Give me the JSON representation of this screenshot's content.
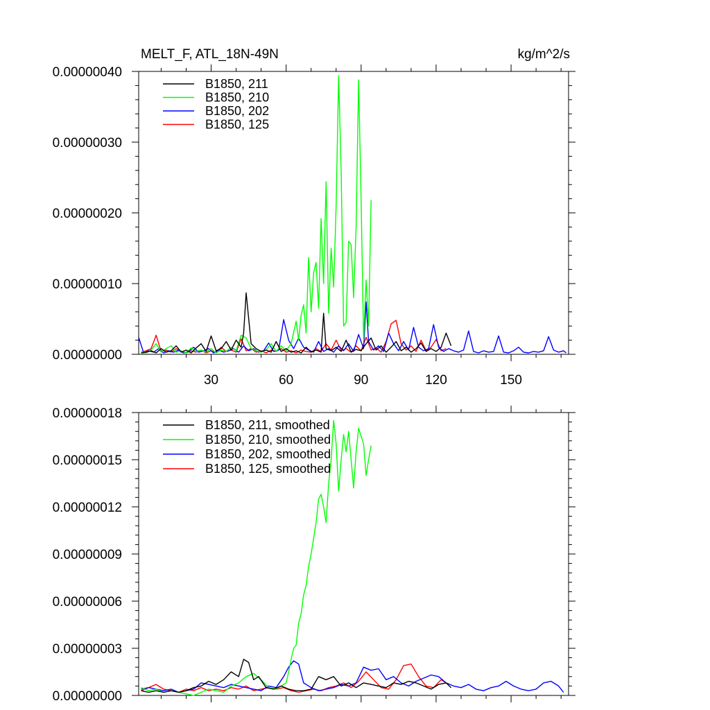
{
  "chart_data": [
    {
      "type": "line",
      "title": "MELT_F, ATL_18N-49N",
      "units": "kg/m^2/s",
      "xlim": [
        1,
        173
      ],
      "ylim": [
        0,
        4e-07
      ],
      "xticks": [
        30,
        60,
        90,
        120,
        150
      ],
      "xtick_labels": [
        "30",
        "60",
        "90",
        "120",
        "150"
      ],
      "yticks": [
        0,
        1e-07,
        2e-07,
        3e-07,
        4e-07
      ],
      "ytick_labels": [
        "0.00000000",
        "0.00000010",
        "0.00000020",
        "0.00000030",
        "0.00000040"
      ],
      "legend_position": "top-left",
      "series": [
        {
          "name": "B1850, 211",
          "color": "#000000",
          "x": [
            2,
            4,
            6,
            8,
            10,
            12,
            14,
            16,
            18,
            20,
            22,
            24,
            26,
            28,
            30,
            32,
            34,
            36,
            38,
            40,
            42,
            43,
            44,
            46,
            48,
            50,
            52,
            54,
            56,
            58,
            60,
            62,
            64,
            66,
            68,
            70,
            72,
            74,
            75,
            76,
            78,
            80,
            82,
            84,
            86,
            88,
            90,
            92,
            94,
            96,
            98,
            100,
            102,
            104,
            106,
            108,
            110,
            112,
            114,
            116,
            118,
            120,
            122,
            124,
            126
          ],
          "y": [
            2e-09,
            3e-09,
            5e-09,
            2e-09,
            8e-09,
            3e-09,
            5e-09,
            1.2e-08,
            3e-09,
            6e-09,
            2e-09,
            9e-09,
            1.5e-08,
            4e-09,
            2.6e-08,
            5e-09,
            8e-09,
            1.8e-08,
            6e-09,
            2e-08,
            1e-08,
            3e-08,
            8.7e-08,
            1.5e-08,
            8e-09,
            4e-09,
            6e-09,
            3e-09,
            1.8e-08,
            4e-09,
            8e-09,
            3e-09,
            5e-09,
            2e-09,
            1e-08,
            3e-09,
            6e-09,
            3e-09,
            5.8e-08,
            8e-09,
            5e-09,
            1e-08,
            4e-09,
            2e-08,
            3e-09,
            7e-09,
            5e-09,
            1.5e-08,
            2.3e-08,
            6e-09,
            1.2e-08,
            3e-09,
            1e-08,
            1.8e-08,
            5e-09,
            1e-08,
            3e-09,
            8e-09,
            1.6e-08,
            4e-09,
            8e-09,
            4e-09,
            1e-08,
            3e-08,
            1.2e-08
          ]
        },
        {
          "name": "B1850, 210",
          "color": "#00ff00",
          "x": [
            2,
            4,
            6,
            8,
            10,
            12,
            14,
            16,
            18,
            20,
            22,
            24,
            26,
            28,
            30,
            32,
            34,
            36,
            38,
            40,
            42,
            44,
            46,
            48,
            50,
            52,
            54,
            56,
            58,
            60,
            62,
            64,
            65,
            66,
            67,
            68,
            69,
            70,
            71,
            72,
            73,
            74,
            75,
            76,
            77,
            78,
            79,
            80,
            81,
            82,
            83,
            84,
            85,
            86,
            87,
            88,
            89,
            90,
            91,
            92,
            93,
            94
          ],
          "y": [
            4e-09,
            2e-09,
            6e-09,
            1.5e-08,
            3e-09,
            8e-09,
            1.2e-08,
            3e-09,
            5e-09,
            2e-09,
            9e-09,
            4e-09,
            6e-09,
            3e-09,
            8e-09,
            2e-09,
            6e-09,
            4e-09,
            1e-08,
            5e-09,
            2.7e-08,
            2.3e-08,
            8e-09,
            5e-09,
            3e-09,
            6e-09,
            1.5e-08,
            4e-09,
            1.2e-08,
            5e-09,
            1.5e-08,
            4.7e-08,
            2e-08,
            5.5e-08,
            7e-08,
            3e-08,
            1.37e-07,
            6e-08,
            1.15e-07,
            1.3e-07,
            6.5e-08,
            1.92e-07,
            1e-07,
            2.44e-07,
            5.8e-08,
            1.5e-07,
            9.5e-08,
            2.1e-07,
            3.94e-07,
            2.6e-07,
            4e-08,
            4.5e-08,
            1.6e-07,
            1.55e-07,
            8e-08,
            1.8e-07,
            3.88e-07,
            2.2e-07,
            2e-08,
            1.05e-07,
            4e-08,
            2.18e-07
          ]
        },
        {
          "name": "B1850, 202",
          "color": "#0000ff",
          "x": [
            1,
            3,
            5,
            7,
            9,
            11,
            13,
            15,
            17,
            19,
            21,
            23,
            25,
            27,
            29,
            31,
            33,
            35,
            37,
            39,
            41,
            43,
            45,
            47,
            49,
            51,
            53,
            55,
            57,
            59,
            61,
            63,
            65,
            67,
            69,
            71,
            73,
            75,
            77,
            79,
            81,
            83,
            85,
            87,
            89,
            91,
            92,
            93,
            95,
            97,
            99,
            101,
            103,
            105,
            107,
            109,
            111,
            113,
            115,
            117,
            119,
            121,
            123,
            125,
            127,
            129,
            131,
            133,
            135,
            137,
            139,
            141,
            143,
            145,
            147,
            149,
            151,
            153,
            155,
            157,
            159,
            161,
            163,
            165,
            167,
            169,
            171,
            172
          ],
          "y": [
            2.4e-08,
            2e-09,
            5e-09,
            3e-09,
            8e-09,
            2e-09,
            5e-09,
            3e-09,
            6e-09,
            2e-09,
            4e-09,
            1e-08,
            3e-09,
            5e-09,
            8e-09,
            2e-09,
            6e-09,
            3e-09,
            5e-09,
            8e-09,
            3e-09,
            1.2e-08,
            5e-09,
            8e-09,
            3e-09,
            5e-09,
            1.6e-08,
            4e-09,
            6e-09,
            4.9e-08,
            2e-08,
            8e-09,
            2.3e-08,
            1e-08,
            6e-09,
            3e-09,
            1.8e-08,
            4e-09,
            8e-09,
            3e-09,
            1.2e-08,
            5e-09,
            1.5e-08,
            4e-09,
            2.8e-08,
            8e-09,
            7.4e-08,
            1.8e-08,
            6e-09,
            1.2e-08,
            4e-09,
            3e-08,
            1.5e-08,
            5e-09,
            1.8e-08,
            6e-09,
            3.8e-08,
            1e-08,
            5e-09,
            8e-09,
            4.2e-08,
            1e-08,
            4e-09,
            8e-09,
            5e-09,
            3e-09,
            6e-09,
            3.3e-08,
            4e-09,
            2e-09,
            5e-09,
            3e-09,
            4e-09,
            2.6e-08,
            3e-09,
            2e-09,
            5e-09,
            1e-08,
            3e-09,
            2e-09,
            4e-09,
            3e-09,
            5e-09,
            2.5e-08,
            6e-09,
            3e-09,
            5e-09,
            2e-09
          ]
        },
        {
          "name": "B1850, 125",
          "color": "#ff0000",
          "x": [
            2,
            4,
            6,
            8,
            10,
            12,
            14,
            16,
            18,
            20,
            22,
            24,
            26,
            28,
            30,
            32,
            34,
            36,
            38,
            40,
            42,
            44,
            46,
            48,
            50,
            52,
            54,
            56,
            58,
            60,
            62,
            64,
            66,
            68,
            70,
            72,
            74,
            76,
            78,
            80,
            82,
            84,
            86,
            88,
            90,
            92,
            94,
            96,
            98,
            100,
            102,
            104,
            106,
            108,
            110,
            112,
            114,
            116,
            118,
            120,
            122,
            124
          ],
          "y": [
            3e-09,
            5e-09,
            8e-09,
            2.7e-08,
            4e-09,
            6e-09,
            3e-09,
            8e-09,
            4e-09,
            2e-09,
            5e-09,
            3e-09,
            6e-09,
            2e-09,
            5e-09,
            3e-09,
            1e-08,
            4e-09,
            6e-09,
            3e-09,
            2.2e-08,
            5e-09,
            8e-09,
            3e-09,
            5e-09,
            2e-09,
            6e-09,
            4e-09,
            8e-09,
            3e-09,
            5e-09,
            2e-09,
            6e-09,
            4e-09,
            3e-09,
            8e-09,
            4e-09,
            1.5e-08,
            6e-09,
            2e-08,
            5e-09,
            8e-09,
            3e-09,
            1.2e-08,
            5e-09,
            2.4e-08,
            6e-09,
            9e-09,
            3e-09,
            1.8e-08,
            4.3e-08,
            4.8e-08,
            1.5e-08,
            6e-09,
            1.2e-08,
            4e-09,
            2e-08,
            5e-09,
            1e-08,
            2.1e-08,
            5e-09,
            8e-09
          ]
        }
      ]
    },
    {
      "type": "line",
      "xlim": [
        1,
        173
      ],
      "ylim": [
        0,
        1.8e-07
      ],
      "xticks": [
        30,
        60,
        90,
        120,
        150
      ],
      "yticks": [
        0,
        3e-08,
        6e-08,
        9e-08,
        1.2e-07,
        1.5e-07,
        1.8e-07
      ],
      "ytick_labels": [
        "0.00000000",
        "0.00000003",
        "0.00000006",
        "0.00000009",
        "0.00000012",
        "0.00000015",
        "0.00000018"
      ],
      "legend_position": "top-left",
      "series": [
        {
          "name": "B1850, 211, smoothed",
          "color": "#000000",
          "x": [
            2,
            5,
            8,
            11,
            14,
            17,
            20,
            23,
            26,
            29,
            32,
            35,
            38,
            41,
            43,
            45,
            47,
            49,
            52,
            55,
            58,
            61,
            64,
            67,
            70,
            73,
            76,
            79,
            82,
            85,
            88,
            91,
            94,
            97,
            100,
            103,
            106,
            109,
            112,
            115,
            118,
            121,
            124,
            126
          ],
          "y": [
            3e-09,
            2e-09,
            3e-09,
            2e-09,
            3e-09,
            2e-09,
            3e-09,
            5e-09,
            6e-09,
            9e-09,
            7e-09,
            1e-08,
            1.5e-08,
            1.2e-08,
            2.3e-08,
            2.1e-08,
            1e-08,
            1.2e-08,
            5e-09,
            4e-09,
            6e-09,
            4e-09,
            3e-09,
            3e-09,
            4e-09,
            1.2e-08,
            1e-08,
            1.2e-08,
            6e-09,
            8e-09,
            5e-09,
            8e-09,
            7e-09,
            6e-09,
            5e-09,
            8e-09,
            7e-09,
            9e-09,
            8e-09,
            6e-09,
            4e-09,
            7e-09,
            8e-09,
            5e-09
          ]
        },
        {
          "name": "B1850, 210, smoothed",
          "color": "#00ff00",
          "x": [
            2,
            5,
            8,
            11,
            14,
            17,
            20,
            23,
            26,
            29,
            32,
            35,
            38,
            41,
            44,
            47,
            50,
            53,
            56,
            58,
            60,
            61,
            62,
            63,
            64,
            65,
            66,
            67,
            68,
            69,
            70,
            71,
            72,
            73,
            74,
            75,
            76,
            77,
            78,
            79,
            80,
            81,
            82,
            83,
            84,
            85,
            86,
            87,
            88,
            89,
            90,
            91,
            92,
            93,
            94
          ],
          "y": [
            5e-09,
            3e-09,
            4e-09,
            2e-09,
            3e-09,
            2e-09,
            1e-09,
            0.0,
            2e-09,
            4e-09,
            3e-09,
            2e-09,
            6e-09,
            8e-09,
            1.2e-08,
            1.4e-08,
            1e-08,
            5e-09,
            4e-09,
            6e-09,
            8e-09,
            1.5e-08,
            2.3e-08,
            3e-08,
            3.2e-08,
            4.6e-08,
            5.2e-08,
            6.4e-08,
            7e-08,
            8.2e-08,
            9e-08,
            1e-07,
            1.1e-07,
            1.25e-07,
            1.28e-07,
            1.2e-07,
            1.1e-07,
            1.35e-07,
            1.5e-07,
            1.75e-07,
            1.6e-07,
            1.3e-07,
            1.5e-07,
            1.66e-07,
            1.55e-07,
            1.68e-07,
            1.5e-07,
            1.32e-07,
            1.55e-07,
            1.7e-07,
            1.65e-07,
            1.6e-07,
            1.4e-07,
            1.5e-07,
            1.59e-07
          ]
        },
        {
          "name": "B1850, 202, smoothed",
          "color": "#0000ff",
          "x": [
            2,
            5,
            8,
            11,
            14,
            17,
            20,
            23,
            26,
            29,
            32,
            35,
            38,
            41,
            44,
            47,
            50,
            53,
            56,
            59,
            61,
            63,
            65,
            67,
            70,
            73,
            76,
            79,
            82,
            85,
            88,
            91,
            94,
            97,
            100,
            103,
            106,
            109,
            112,
            115,
            118,
            121,
            124,
            127,
            130,
            133,
            136,
            139,
            142,
            145,
            148,
            151,
            154,
            157,
            160,
            163,
            166,
            169,
            171
          ],
          "y": [
            4e-09,
            5e-09,
            4e-09,
            3e-09,
            4e-09,
            2e-09,
            3e-09,
            4e-09,
            8e-09,
            7e-09,
            6e-09,
            5e-09,
            7e-09,
            6e-09,
            5e-09,
            4e-09,
            3e-09,
            6e-09,
            5e-09,
            1.2e-08,
            1.8e-08,
            2.2e-08,
            2e-08,
            8e-09,
            5e-09,
            3e-09,
            4e-09,
            5e-09,
            7e-09,
            6e-09,
            8e-09,
            1.8e-08,
            1.6e-08,
            1.7e-08,
            1e-08,
            1.2e-08,
            8e-09,
            6e-09,
            9e-09,
            1.1e-08,
            1.3e-08,
            1.2e-08,
            8e-09,
            6e-09,
            5e-09,
            7e-09,
            4e-09,
            3e-09,
            5e-09,
            6e-09,
            9e-09,
            6e-09,
            4e-09,
            3e-09,
            4e-09,
            8e-09,
            9e-09,
            6e-09,
            2e-09
          ]
        },
        {
          "name": "B1850, 125, smoothed",
          "color": "#ff0000",
          "x": [
            2,
            5,
            8,
            11,
            14,
            17,
            20,
            23,
            26,
            29,
            32,
            35,
            38,
            41,
            44,
            47,
            50,
            53,
            56,
            59,
            62,
            65,
            68,
            71,
            74,
            77,
            80,
            83,
            86,
            89,
            92,
            95,
            98,
            101,
            104,
            107,
            110,
            113,
            116,
            119,
            122,
            124
          ],
          "y": [
            3e-09,
            5e-09,
            7e-09,
            4e-09,
            3e-09,
            2e-09,
            4e-09,
            3e-09,
            5e-09,
            3e-09,
            4e-09,
            3e-09,
            5e-09,
            4e-09,
            6e-09,
            3e-09,
            4e-09,
            5e-09,
            4e-09,
            5e-09,
            3e-09,
            2e-09,
            3e-09,
            4e-09,
            3e-09,
            5e-09,
            6e-09,
            8e-09,
            5e-09,
            9e-09,
            1.5e-08,
            1e-08,
            5e-09,
            4e-09,
            1e-08,
            1.9e-08,
            2e-08,
            1.2e-08,
            6e-09,
            5e-09,
            1e-08,
            8e-09
          ]
        }
      ]
    }
  ]
}
